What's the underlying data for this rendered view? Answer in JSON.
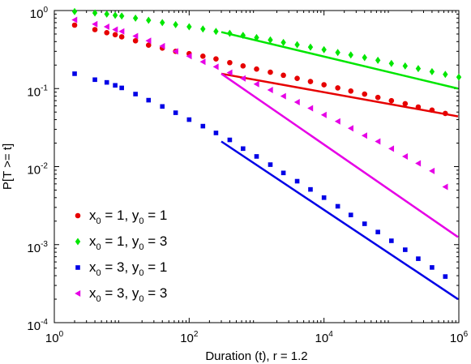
{
  "chart_data": {
    "type": "scatter",
    "title": "",
    "xlabel": "Duration (t), r = 1.2",
    "ylabel": "P[T >= t]",
    "x_scale": "log",
    "y_scale": "log",
    "xlim": [
      1,
      1000000
    ],
    "ylim": [
      0.0001,
      1
    ],
    "grid": false,
    "legend_position": "bottom-left",
    "x_ticks": [
      {
        "value": 1,
        "base": "10",
        "exp": "0"
      },
      {
        "value": 100,
        "base": "10",
        "exp": "2"
      },
      {
        "value": 10000,
        "base": "10",
        "exp": "4"
      },
      {
        "value": 1000000,
        "base": "10",
        "exp": "6"
      }
    ],
    "y_ticks": [
      {
        "value": 1,
        "base": "10",
        "exp": "0"
      },
      {
        "value": 0.1,
        "base": "10",
        "exp": "-1"
      },
      {
        "value": 0.01,
        "base": "10",
        "exp": "-2"
      },
      {
        "value": 0.001,
        "base": "10",
        "exp": "-3"
      },
      {
        "value": 0.0001,
        "base": "10",
        "exp": "-4"
      }
    ],
    "series": [
      {
        "legend": {
          "a": "x",
          "a_sub": "0",
          "a_val": " = 1, ",
          "b": "y",
          "b_sub": "0",
          "b_val": " = 1"
        },
        "color": "#e60000",
        "marker": "circle",
        "points": [
          {
            "x": 2,
            "y": 0.65
          },
          {
            "x": 4,
            "y": 0.57
          },
          {
            "x": 6,
            "y": 0.52
          },
          {
            "x": 8,
            "y": 0.49
          },
          {
            "x": 10,
            "y": 0.46
          },
          {
            "x": 16,
            "y": 0.41
          },
          {
            "x": 25,
            "y": 0.36
          },
          {
            "x": 40,
            "y": 0.33
          },
          {
            "x": 63,
            "y": 0.3
          },
          {
            "x": 100,
            "y": 0.28
          },
          {
            "x": 160,
            "y": 0.26
          },
          {
            "x": 250,
            "y": 0.24
          },
          {
            "x": 400,
            "y": 0.215
          },
          {
            "x": 630,
            "y": 0.195
          },
          {
            "x": 1000,
            "y": 0.178
          },
          {
            "x": 1600,
            "y": 0.162
          },
          {
            "x": 2500,
            "y": 0.148
          },
          {
            "x": 4000,
            "y": 0.135
          },
          {
            "x": 6300,
            "y": 0.123
          },
          {
            "x": 10000,
            "y": 0.112
          },
          {
            "x": 16000,
            "y": 0.102
          },
          {
            "x": 25000,
            "y": 0.093
          },
          {
            "x": 40000,
            "y": 0.085
          },
          {
            "x": 63000,
            "y": 0.077
          },
          {
            "x": 100000,
            "y": 0.07
          },
          {
            "x": 160000,
            "y": 0.064
          },
          {
            "x": 250000,
            "y": 0.058
          },
          {
            "x": 400000,
            "y": 0.053
          },
          {
            "x": 630000,
            "y": 0.048
          }
        ],
        "fit": [
          {
            "x": 300,
            "y": 0.155
          },
          {
            "x": 1000000,
            "y": 0.044
          }
        ]
      },
      {
        "legend": {
          "a": "x",
          "a_sub": "0",
          "a_val": " = 1, ",
          "b": "y",
          "b_sub": "0",
          "b_val": " = 3"
        },
        "color": "#00e600",
        "marker": "diamond",
        "points": [
          {
            "x": 2,
            "y": 0.97
          },
          {
            "x": 4,
            "y": 0.93
          },
          {
            "x": 6,
            "y": 0.9
          },
          {
            "x": 8,
            "y": 0.87
          },
          {
            "x": 10,
            "y": 0.85
          },
          {
            "x": 16,
            "y": 0.8
          },
          {
            "x": 25,
            "y": 0.75
          },
          {
            "x": 40,
            "y": 0.7
          },
          {
            "x": 63,
            "y": 0.66
          },
          {
            "x": 100,
            "y": 0.62
          },
          {
            "x": 160,
            "y": 0.58
          },
          {
            "x": 250,
            "y": 0.54
          },
          {
            "x": 400,
            "y": 0.51
          },
          {
            "x": 630,
            "y": 0.48
          },
          {
            "x": 1000,
            "y": 0.45
          },
          {
            "x": 1600,
            "y": 0.42
          },
          {
            "x": 2500,
            "y": 0.39
          },
          {
            "x": 4000,
            "y": 0.365
          },
          {
            "x": 6300,
            "y": 0.34
          },
          {
            "x": 10000,
            "y": 0.315
          },
          {
            "x": 16000,
            "y": 0.29
          },
          {
            "x": 25000,
            "y": 0.27
          },
          {
            "x": 40000,
            "y": 0.25
          },
          {
            "x": 63000,
            "y": 0.23
          },
          {
            "x": 100000,
            "y": 0.21
          },
          {
            "x": 160000,
            "y": 0.195
          },
          {
            "x": 250000,
            "y": 0.18
          },
          {
            "x": 400000,
            "y": 0.165
          },
          {
            "x": 630000,
            "y": 0.152
          },
          {
            "x": 1000000,
            "y": 0.14
          }
        ],
        "fit": [
          {
            "x": 300,
            "y": 0.53
          },
          {
            "x": 1000000,
            "y": 0.1
          }
        ]
      },
      {
        "legend": {
          "a": "x",
          "a_sub": "0",
          "a_val": " = 3, ",
          "b": "y",
          "b_sub": "0",
          "b_val": " = 1"
        },
        "color": "#0000e6",
        "marker": "square",
        "points": [
          {
            "x": 2,
            "y": 0.155
          },
          {
            "x": 4,
            "y": 0.13
          },
          {
            "x": 6,
            "y": 0.12
          },
          {
            "x": 8,
            "y": 0.11
          },
          {
            "x": 10,
            "y": 0.102
          },
          {
            "x": 16,
            "y": 0.085
          },
          {
            "x": 25,
            "y": 0.071
          },
          {
            "x": 40,
            "y": 0.059
          },
          {
            "x": 63,
            "y": 0.049
          },
          {
            "x": 100,
            "y": 0.04
          },
          {
            "x": 160,
            "y": 0.033
          },
          {
            "x": 250,
            "y": 0.027
          },
          {
            "x": 400,
            "y": 0.022
          },
          {
            "x": 630,
            "y": 0.017
          },
          {
            "x": 1000,
            "y": 0.0135
          },
          {
            "x": 1600,
            "y": 0.0106
          },
          {
            "x": 2500,
            "y": 0.0083
          },
          {
            "x": 4000,
            "y": 0.0065
          },
          {
            "x": 6300,
            "y": 0.0051
          },
          {
            "x": 10000,
            "y": 0.004
          },
          {
            "x": 16000,
            "y": 0.0031
          },
          {
            "x": 25000,
            "y": 0.0024
          },
          {
            "x": 40000,
            "y": 0.00185
          },
          {
            "x": 63000,
            "y": 0.00145
          },
          {
            "x": 100000,
            "y": 0.00112
          },
          {
            "x": 160000,
            "y": 0.00086
          },
          {
            "x": 250000,
            "y": 0.00066
          },
          {
            "x": 400000,
            "y": 0.00051
          },
          {
            "x": 630000,
            "y": 0.00039
          }
        ],
        "fit": [
          {
            "x": 300,
            "y": 0.021
          },
          {
            "x": 1000000,
            "y": 0.0002
          }
        ]
      },
      {
        "legend": {
          "a": "x",
          "a_sub": "0",
          "a_val": " = 3, ",
          "b": "y",
          "b_sub": "0",
          "b_val": " = 3"
        },
        "color": "#e600e6",
        "marker": "triangle-left",
        "points": [
          {
            "x": 2,
            "y": 0.76
          },
          {
            "x": 4,
            "y": 0.67
          },
          {
            "x": 6,
            "y": 0.62
          },
          {
            "x": 8,
            "y": 0.57
          },
          {
            "x": 10,
            "y": 0.54
          },
          {
            "x": 16,
            "y": 0.47
          },
          {
            "x": 25,
            "y": 0.41
          },
          {
            "x": 40,
            "y": 0.35
          },
          {
            "x": 63,
            "y": 0.3
          },
          {
            "x": 100,
            "y": 0.26
          },
          {
            "x": 160,
            "y": 0.22
          },
          {
            "x": 250,
            "y": 0.19
          },
          {
            "x": 400,
            "y": 0.16
          },
          {
            "x": 630,
            "y": 0.135
          },
          {
            "x": 1000,
            "y": 0.114
          },
          {
            "x": 1600,
            "y": 0.096
          },
          {
            "x": 2500,
            "y": 0.08
          },
          {
            "x": 4000,
            "y": 0.067
          },
          {
            "x": 6300,
            "y": 0.056
          },
          {
            "x": 10000,
            "y": 0.046
          },
          {
            "x": 16000,
            "y": 0.038
          },
          {
            "x": 25000,
            "y": 0.031
          },
          {
            "x": 40000,
            "y": 0.025
          },
          {
            "x": 63000,
            "y": 0.021
          },
          {
            "x": 100000,
            "y": 0.017
          },
          {
            "x": 160000,
            "y": 0.0135
          },
          {
            "x": 250000,
            "y": 0.011
          },
          {
            "x": 400000,
            "y": 0.0088
          },
          {
            "x": 630000,
            "y": 0.0055
          }
        ],
        "fit": [
          {
            "x": 300,
            "y": 0.155
          },
          {
            "x": 1000000,
            "y": 0.00125
          }
        ]
      }
    ]
  }
}
